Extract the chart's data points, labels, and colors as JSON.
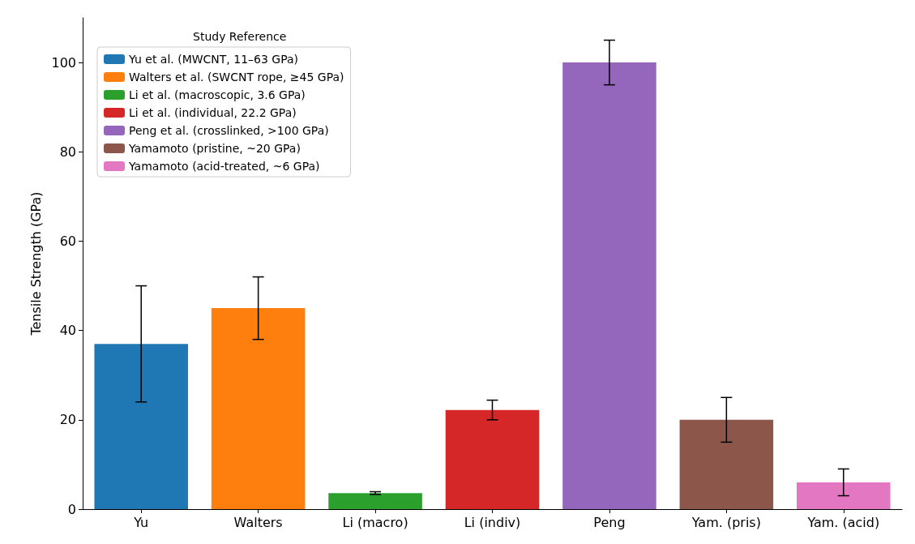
{
  "chart_data": {
    "type": "bar",
    "ylabel": "Tensile Strength (GPa)",
    "legend_title": "Study Reference",
    "categories": [
      "Yu",
      "Walters",
      "Li (macro)",
      "Li (indiv)",
      "Peng",
      "Yam. (pris)",
      "Yam. (acid)"
    ],
    "series": [
      {
        "name": "Yu et al. (MWCNT, 11–63 GPa)",
        "color": "#1f77b4",
        "values": [
          37,
          null,
          null,
          null,
          null,
          null,
          null
        ],
        "errors": [
          13,
          null,
          null,
          null,
          null,
          null,
          null
        ]
      },
      {
        "name": "Walters et al. (SWCNT rope, ≥45 GPa)",
        "color": "#ff7f0e",
        "values": [
          null,
          45,
          null,
          null,
          null,
          null,
          null
        ],
        "errors": [
          null,
          7,
          null,
          null,
          null,
          null,
          null
        ]
      },
      {
        "name": "Li et al. (macroscopic, 3.6 GPa)",
        "color": "#2ca02c",
        "values": [
          null,
          null,
          3.6,
          null,
          null,
          null,
          null
        ],
        "errors": [
          null,
          null,
          0.3,
          null,
          null,
          null,
          null
        ]
      },
      {
        "name": "Li et al. (individual, 22.2 GPa)",
        "color": "#d62728",
        "values": [
          null,
          null,
          null,
          22.2,
          null,
          null,
          null
        ],
        "errors": [
          null,
          null,
          null,
          2.2,
          null,
          null,
          null
        ]
      },
      {
        "name": "Peng et al. (crosslinked, >100 GPa)",
        "color": "#9467bd",
        "values": [
          null,
          null,
          null,
          null,
          100,
          null,
          null
        ],
        "errors": [
          null,
          null,
          null,
          null,
          5,
          null,
          null
        ]
      },
      {
        "name": "Yamamoto (pristine, ~20 GPa)",
        "color": "#8c564b",
        "values": [
          null,
          null,
          null,
          null,
          null,
          20,
          null
        ],
        "errors": [
          null,
          null,
          null,
          null,
          null,
          5,
          null
        ]
      },
      {
        "name": "Yamamoto (acid-treated, ~6 GPa)",
        "color": "#e377c2",
        "values": [
          null,
          null,
          null,
          null,
          null,
          null,
          6
        ],
        "errors": [
          null,
          null,
          null,
          null,
          null,
          null,
          3
        ]
      }
    ],
    "ylim": [
      0,
      110
    ],
    "yticks": [
      0,
      20,
      40,
      60,
      80,
      100
    ],
    "grid": false,
    "legend": "top left"
  }
}
